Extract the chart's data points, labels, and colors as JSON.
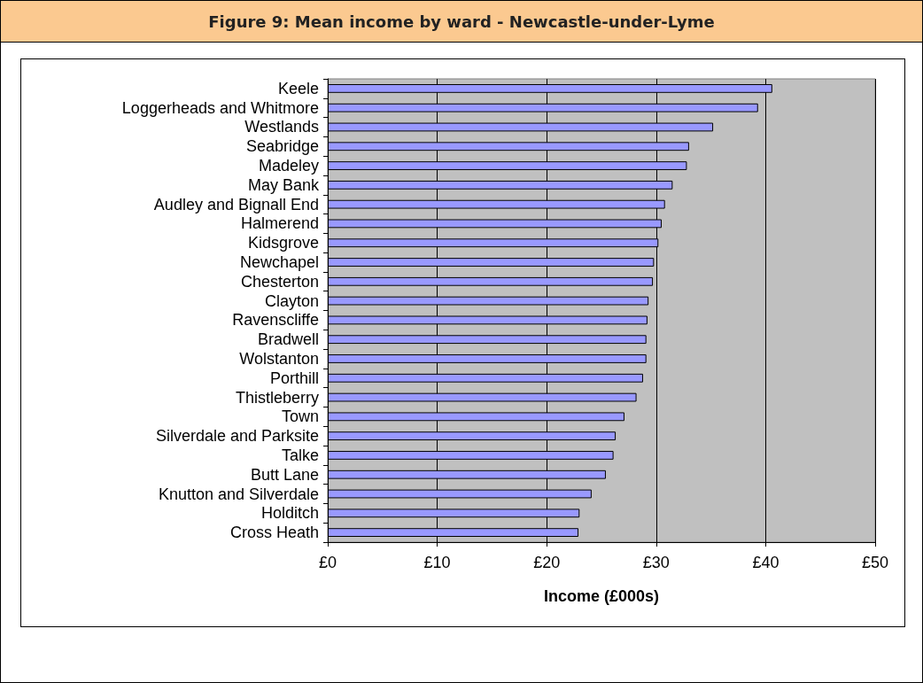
{
  "chart_data": {
    "type": "bar",
    "orientation": "horizontal",
    "title": "Figure 9: Mean income by ward - Newcastle-under-Lyme",
    "xlabel": "Income (£000s)",
    "categories": [
      "Keele",
      "Loggerheads and Whitmore",
      "Westlands",
      "Seabridge",
      "Madeley",
      "May Bank",
      "Audley and Bignall End",
      "Halmerend",
      "Kidsgrove",
      "Newchapel",
      "Chesterton",
      "Clayton",
      "Ravenscliffe",
      "Bradwell",
      "Wolstanton",
      "Porthill",
      "Thistleberry",
      "Town",
      "Silverdale and Parksite",
      "Talke",
      "Butt Lane",
      "Knutton and Silverdale",
      "Holditch",
      "Cross Heath"
    ],
    "values": [
      40.6,
      39.3,
      35.2,
      33.0,
      32.8,
      31.5,
      30.8,
      30.5,
      30.2,
      29.8,
      29.7,
      29.3,
      29.2,
      29.1,
      29.1,
      28.8,
      28.2,
      27.1,
      26.3,
      26.1,
      25.4,
      24.1,
      23.0,
      22.9
    ],
    "color": "#9999ff",
    "xlim": [
      0,
      50
    ],
    "xticks": [
      {
        "value": 0,
        "label": "£0"
      },
      {
        "value": 10,
        "label": "£10"
      },
      {
        "value": 20,
        "label": "£20"
      },
      {
        "value": 30,
        "label": "£30"
      },
      {
        "value": 40,
        "label": "£40"
      },
      {
        "value": 50,
        "label": "£50"
      }
    ],
    "grid": "x"
  }
}
